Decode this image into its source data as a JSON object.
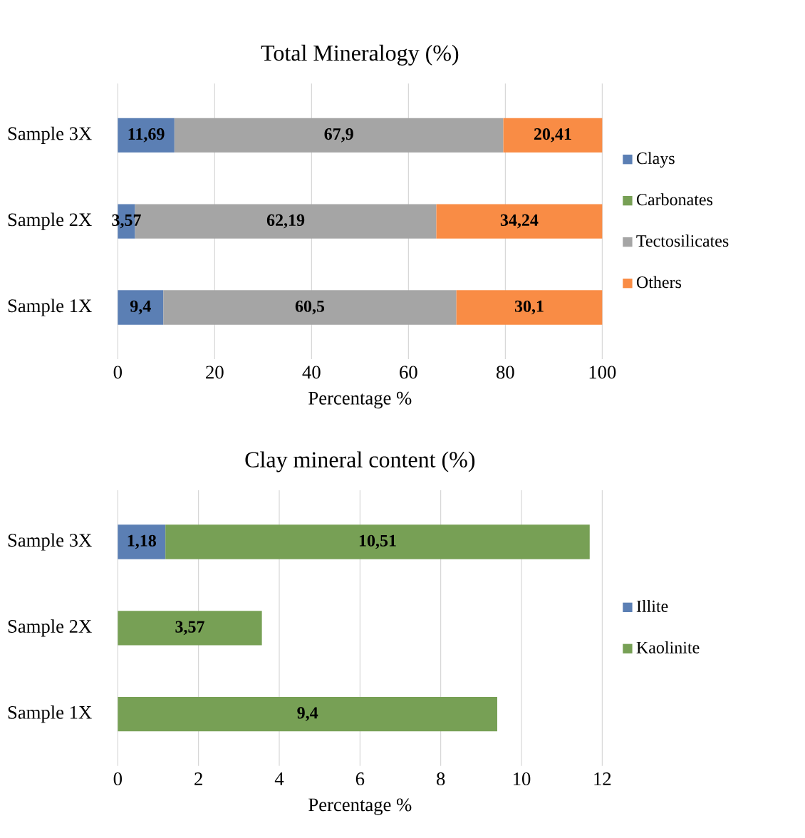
{
  "chart_data": [
    {
      "type": "bar",
      "orientation": "horizontal",
      "stacked": true,
      "title": "Total Mineralogy (%)",
      "xlabel": "Percentage %",
      "categories": [
        "Sample 3X",
        "Sample 2X",
        "Sample 1X"
      ],
      "series": [
        {
          "name": "Clays",
          "color": "#5b7fb4",
          "values": [
            11.69,
            3.57,
            9.4
          ],
          "value_labels": [
            "11,69",
            "3,57",
            "9,4"
          ]
        },
        {
          "name": "Carbonates",
          "color": "#77a055",
          "values": [
            null,
            null,
            null
          ]
        },
        {
          "name": "Tectosilicates",
          "color": "#a5a5a5",
          "values": [
            67.9,
            62.19,
            60.5
          ],
          "value_labels": [
            "67,9",
            "62,19",
            "60,5"
          ]
        },
        {
          "name": "Others",
          "color": "#f98c45",
          "values": [
            20.41,
            34.24,
            30.1
          ],
          "value_labels": [
            "20,41",
            "34,24",
            "30,1"
          ]
        }
      ],
      "xlim": [
        0,
        100
      ],
      "xticks": [
        0,
        20,
        40,
        60,
        80,
        100
      ],
      "grid": "x",
      "legend": "right"
    },
    {
      "type": "bar",
      "orientation": "horizontal",
      "stacked": true,
      "title": "Clay mineral content (%)",
      "xlabel": "Percentage %",
      "categories": [
        "Sample 3X",
        "Sample 2X",
        "Sample 1X"
      ],
      "series": [
        {
          "name": "Illite",
          "color": "#5b7fb4",
          "values": [
            1.18,
            null,
            null
          ],
          "value_labels": [
            "1,18",
            null,
            null
          ]
        },
        {
          "name": "Kaolinite",
          "color": "#77a055",
          "values": [
            10.51,
            3.57,
            9.4
          ],
          "value_labels": [
            "10,51",
            "3,57",
            "9,4"
          ]
        }
      ],
      "xlim": [
        0,
        12
      ],
      "xticks": [
        0,
        2,
        4,
        6,
        8,
        10,
        12
      ],
      "grid": "x",
      "legend": "right"
    }
  ]
}
